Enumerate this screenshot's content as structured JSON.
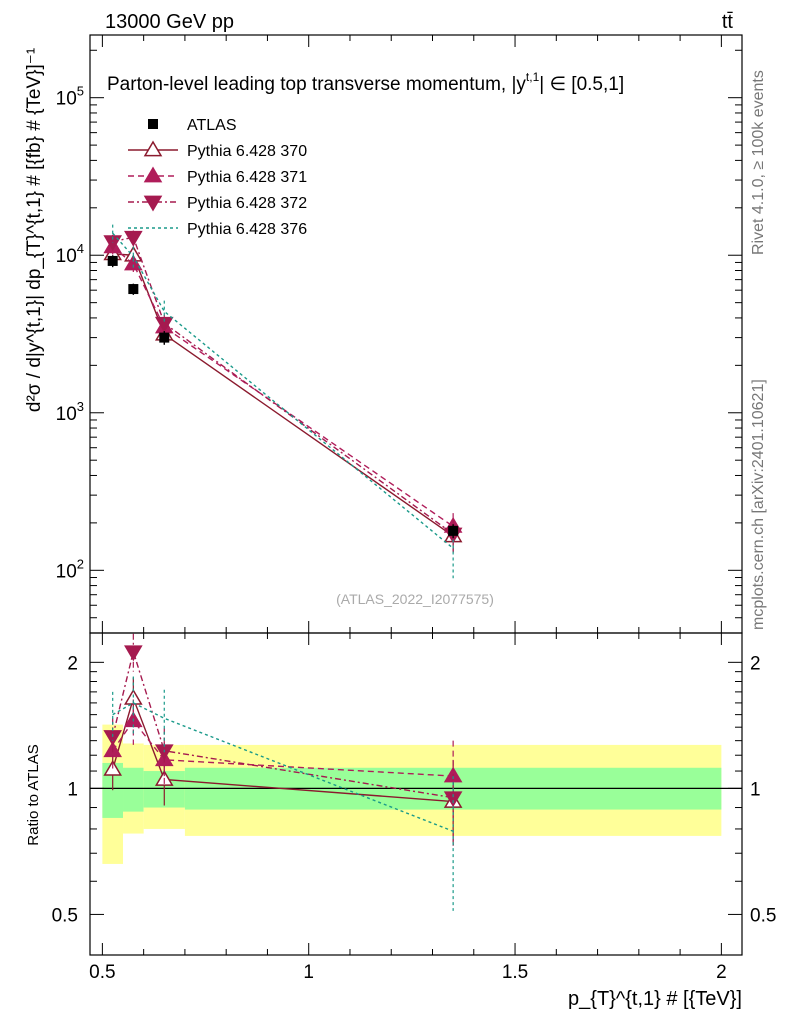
{
  "header": {
    "beam": "13000 GeV pp",
    "process": "tt̄"
  },
  "side": {
    "rivet": "Rivet 4.1.0, ≥ 100k events",
    "source": "mcplots.cern.ch [arXiv:2401.10621]"
  },
  "chart_data": {
    "type": "line",
    "title": "Parton-level leading top transverse momentum, |y^{t,1}| ∈ [0.5,1]",
    "title_main": "Parton-level leading top transverse momentum, |y",
    "title_sup": "t,1",
    "title_tail": "| ∈ [0.5,1]",
    "analysis_tag": "(ATLAS_2022_I2077575)",
    "ylabel": "d²σ / d|y^{t,1}| dp_{T}^{t,1} # [{fb} # {TeV}^{-1}]",
    "ylabel_text": "d²σ / d|y^{t,1}| dp_{T}^{t,1} # [{fb} # {TeV}]⁻¹",
    "xlabel": "p_{T}^{t,1} # [{TeV}]",
    "xlabel_text": "p_{T}^{t,1} # [{TeV}]",
    "ratio_ylabel": "Ratio to ATLAS",
    "x_range": [
      0.47,
      2.05
    ],
    "y_range_log": [
      40,
      250000
    ],
    "ratio_range": [
      0.4,
      2.35
    ],
    "x_ticks": [
      {
        "value": 0.5,
        "label": "0.5"
      },
      {
        "value": 1,
        "label": "1"
      },
      {
        "value": 1.5,
        "label": "1.5"
      },
      {
        "value": 2,
        "label": "2"
      }
    ],
    "y_ticks": [
      {
        "value": 100,
        "base": "10",
        "exp": "2"
      },
      {
        "value": 1000,
        "base": "10",
        "exp": "3"
      },
      {
        "value": 10000,
        "base": "10",
        "exp": "4"
      },
      {
        "value": 100000,
        "base": "10",
        "exp": "5"
      }
    ],
    "ratio_ticks": [
      {
        "value": 0.5,
        "label": "0.5"
      },
      {
        "value": 1,
        "label": "1"
      },
      {
        "value": 2,
        "label": "2"
      }
    ],
    "bins": [
      {
        "lo": 0.5,
        "hi": 0.55
      },
      {
        "lo": 0.55,
        "hi": 0.6
      },
      {
        "lo": 0.6,
        "hi": 0.7
      },
      {
        "lo": 0.7,
        "hi": 2.0
      }
    ],
    "x": [
      0.525,
      0.575,
      0.65,
      1.35
    ],
    "data": {
      "name": "ATLAS",
      "values": [
        9200,
        6100,
        3000,
        178
      ],
      "err_lo": [
        800,
        500,
        300,
        18
      ],
      "err_hi": [
        800,
        500,
        300,
        18
      ],
      "band_stat_lo": [
        0.85,
        0.88,
        0.9,
        0.89
      ],
      "band_stat_hi": [
        1.15,
        1.12,
        1.1,
        1.12
      ],
      "band_tot_lo": [
        0.66,
        0.78,
        0.8,
        0.77
      ],
      "band_tot_hi": [
        1.42,
        1.28,
        1.27,
        1.27
      ]
    },
    "series": [
      {
        "name": "Pythia 6.428 370",
        "color": "#8b1a2e",
        "dash": "",
        "marker": "triangle-up-open",
        "values": [
          10200,
          10000,
          3150,
          165
        ],
        "ratio": [
          1.11,
          1.64,
          1.05,
          0.93
        ],
        "ratio_err": [
          0.12,
          0.2,
          0.14,
          0.2
        ]
      },
      {
        "name": "Pythia 6.428 371",
        "color": "#b01d5a",
        "dash": "6,4",
        "marker": "triangle-up-filled",
        "values": [
          11300,
          8800,
          3500,
          190
        ],
        "ratio": [
          1.23,
          1.45,
          1.17,
          1.07
        ],
        "ratio_err": [
          0.13,
          0.18,
          0.15,
          0.23
        ]
      },
      {
        "name": "Pythia 6.428 372",
        "color": "#a51a4f",
        "dash": "6,3,2,3",
        "marker": "triangle-down-filled",
        "values": [
          12200,
          13000,
          3700,
          170
        ],
        "ratio": [
          1.33,
          2.12,
          1.23,
          0.95
        ],
        "ratio_err": [
          0.14,
          0.22,
          0.16,
          0.22
        ]
      },
      {
        "name": "Pythia 6.428 376",
        "color": "#1a9a8a",
        "dash": "3,3",
        "marker": "none",
        "values": [
          13800,
          9800,
          4400,
          138
        ],
        "ratio": [
          1.5,
          1.6,
          1.47,
          0.79
        ],
        "ratio_err": [
          0.2,
          0.25,
          0.25,
          0.28
        ]
      }
    ]
  }
}
